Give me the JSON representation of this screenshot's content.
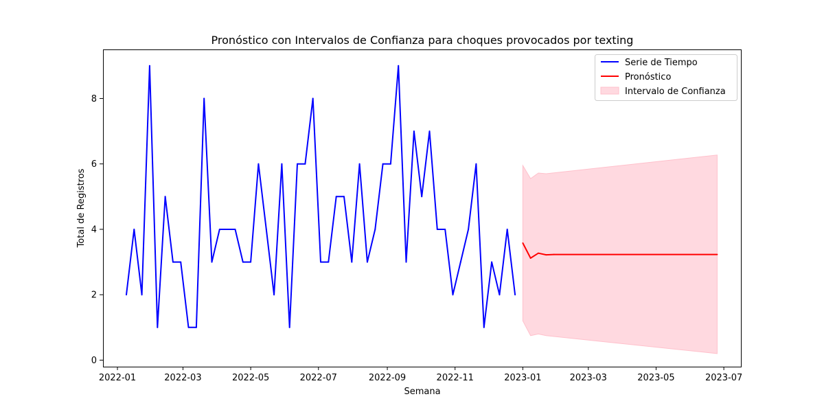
{
  "chart_data": {
    "type": "line",
    "title": "Pronóstico con Intervalos de Confianza para choques provocados por texting",
    "xlabel": "Semana",
    "ylabel": "Total de Registros",
    "x_ticks": [
      "2022-01",
      "2022-03",
      "2022-05",
      "2022-07",
      "2022-09",
      "2022-11",
      "2023-01",
      "2023-03",
      "2023-05",
      "2023-07"
    ],
    "y_ticks": [
      "0",
      "2",
      "4",
      "6",
      "8"
    ],
    "xlim": [
      "2021-12-19",
      "2023-07-17"
    ],
    "ylim": [
      -0.2,
      9.5
    ],
    "grid": false,
    "legend_position": "top-right",
    "series": [
      {
        "name": "Serie de Tiempo",
        "color": "#0000ff",
        "x": [
          "2022-01-09",
          "2022-01-16",
          "2022-01-23",
          "2022-01-30",
          "2022-02-06",
          "2022-02-13",
          "2022-02-20",
          "2022-02-27",
          "2022-03-06",
          "2022-03-13",
          "2022-03-20",
          "2022-03-27",
          "2022-04-03",
          "2022-04-10",
          "2022-04-17",
          "2022-04-24",
          "2022-05-01",
          "2022-05-08",
          "2022-05-15",
          "2022-05-22",
          "2022-05-29",
          "2022-06-05",
          "2022-06-12",
          "2022-06-19",
          "2022-06-26",
          "2022-07-03",
          "2022-07-10",
          "2022-07-17",
          "2022-07-24",
          "2022-07-31",
          "2022-08-07",
          "2022-08-14",
          "2022-08-21",
          "2022-08-28",
          "2022-09-04",
          "2022-09-11",
          "2022-09-18",
          "2022-09-25",
          "2022-10-02",
          "2022-10-09",
          "2022-10-16",
          "2022-10-23",
          "2022-10-30",
          "2022-11-06",
          "2022-11-13",
          "2022-11-20",
          "2022-11-27",
          "2022-12-04",
          "2022-12-11",
          "2022-12-18",
          "2022-12-25"
        ],
        "y": [
          2,
          4,
          2,
          9,
          1,
          5,
          3,
          3,
          1,
          1,
          8,
          3,
          4,
          4,
          4,
          3,
          3,
          6,
          4,
          2,
          6,
          1,
          6,
          6,
          8,
          3,
          3,
          5,
          5,
          3,
          6,
          3,
          4,
          6,
          6,
          9,
          3,
          7,
          5,
          7,
          4,
          4,
          2,
          3,
          4,
          6,
          1,
          3,
          2,
          4,
          2
        ]
      },
      {
        "name": "Pronóstico",
        "color": "#ff0000",
        "x": [
          "2023-01-01",
          "2023-01-08",
          "2023-01-15",
          "2023-01-22",
          "2023-01-29",
          "2023-06-25"
        ],
        "y": [
          3.58,
          3.12,
          3.27,
          3.22,
          3.23,
          3.23
        ]
      }
    ],
    "confidence_interval": {
      "name": "Intervalo de Confianza",
      "color": "#ffc0cb",
      "x": [
        "2023-01-01",
        "2023-01-08",
        "2023-01-15",
        "2023-01-22",
        "2023-06-25"
      ],
      "lower": [
        1.2,
        0.75,
        0.8,
        0.75,
        0.2
      ],
      "upper": [
        5.95,
        5.55,
        5.72,
        5.7,
        6.27
      ]
    }
  }
}
